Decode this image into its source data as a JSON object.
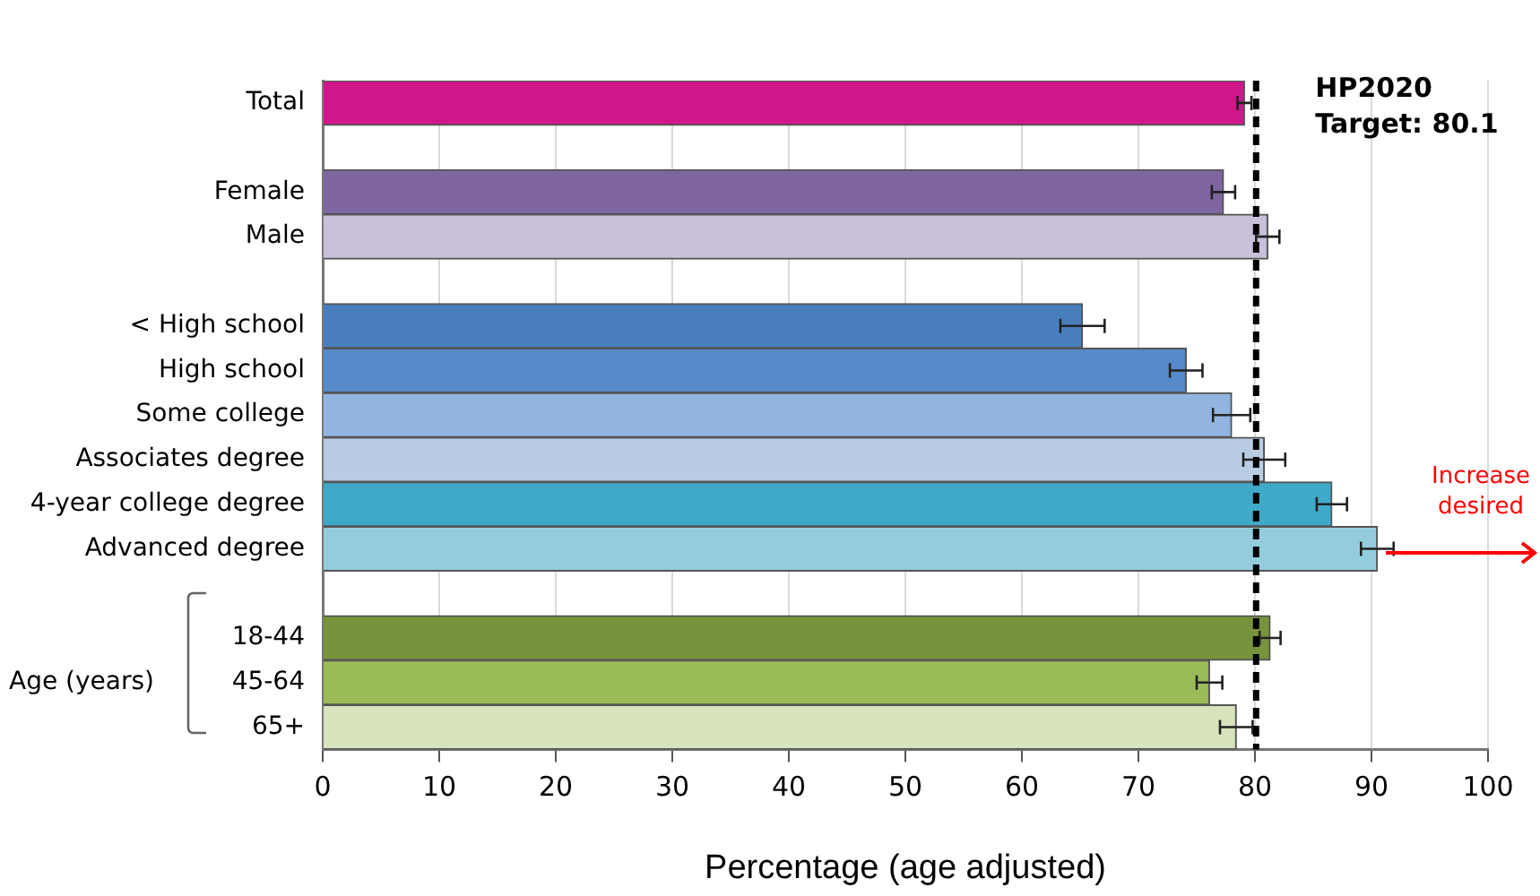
{
  "chart_data": {
    "type": "bar",
    "orientation": "horizontal",
    "xlabel": "Percentage (age adjusted)",
    "categories": [
      "Total",
      null,
      "Female",
      "Male",
      null,
      "< High school",
      "High school",
      "Some college",
      "Associates degree",
      "4-year college degree",
      "Advanced degree",
      null,
      "18-44",
      "45-64",
      "65+"
    ],
    "values": [
      79.1,
      null,
      77.3,
      81.1,
      null,
      65.2,
      74.1,
      78.0,
      80.8,
      86.6,
      90.5,
      null,
      81.3,
      76.1,
      78.4
    ],
    "errors": [
      0.6,
      null,
      1.0,
      1.0,
      null,
      1.9,
      1.4,
      1.6,
      1.8,
      1.3,
      1.4,
      null,
      0.9,
      1.1,
      1.4
    ],
    "colors": [
      "#d1168c",
      null,
      "#7f66a1",
      "#c9c0dc",
      null,
      "#4a7fbe",
      "#568ac8",
      "#92b4e0",
      "#b8cce4",
      "#3fa9c9",
      "#93cddd",
      null,
      "#77933c",
      "#9bbb59",
      "#d7e4bd"
    ],
    "xlim": [
      0,
      100
    ],
    "xticks": [
      0,
      10,
      20,
      30,
      40,
      50,
      60,
      70,
      80,
      90,
      100
    ],
    "grid": "x",
    "legend": false,
    "ref_lines": [
      {
        "axis": "x",
        "value": 80.1,
        "label": "HP2020\nTarget: 80.1",
        "color": "#000000",
        "line_style": "dashed"
      }
    ],
    "annotations": [
      "Increase desired",
      "Age (years)"
    ]
  }
}
